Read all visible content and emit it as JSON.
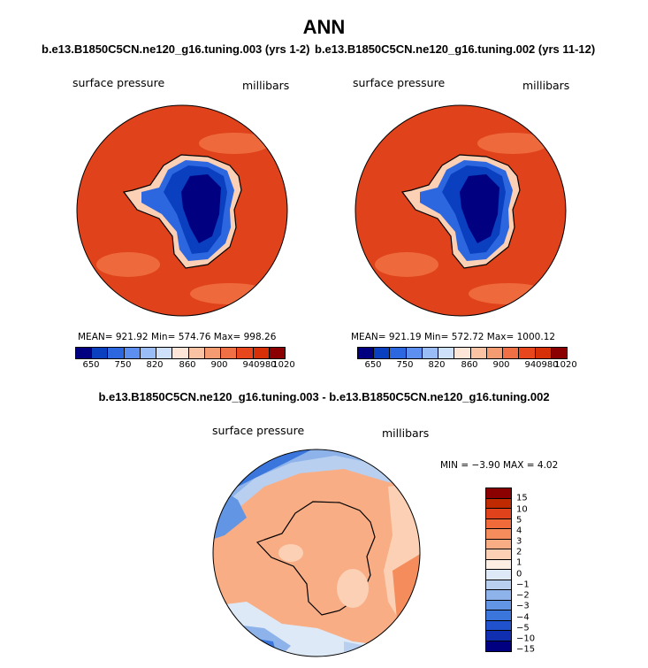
{
  "page": {
    "title": "ANN",
    "left_title": "b.e13.B1850C5CN.ne120_g16.tuning.003 (yrs 1-2)",
    "right_title": "b.e13.B1850C5CN.ne120_g16.tuning.002 (yrs 11-12)",
    "diff_title": "b.e13.B1850C5CN.ne120_g16.tuning.003 - b.e13.B1850C5CN.ne120_g16.tuning.002"
  },
  "chart_data": [
    {
      "type": "heatmap",
      "projection": "south-polar-stereographic",
      "variable": "surface pressure",
      "units": "millibars",
      "title": "b.e13.B1850C5CN.ne120_g16.tuning.003 (yrs 1-2)",
      "stats": {
        "mean": "921.92",
        "min": "574.76",
        "max": "998.26"
      },
      "stats_text": "MEAN= 921.92  Min= 574.76  Max= 998.26",
      "levels": [
        "650",
        "750",
        "820",
        "860",
        "900",
        "940",
        "980",
        "1020"
      ],
      "colors": [
        "#000080",
        "#0a3fbf",
        "#2c67e0",
        "#5c8ff0",
        "#9abdf7",
        "#cfe0fb",
        "#fde6d8",
        "#fac3a3",
        "#f49b72",
        "#ee7044",
        "#e8471d",
        "#d73008",
        "#8b0000"
      ]
    },
    {
      "type": "heatmap",
      "projection": "south-polar-stereographic",
      "variable": "surface pressure",
      "units": "millibars",
      "title": "b.e13.B1850C5CN.ne120_g16.tuning.002 (yrs 11-12)",
      "stats": {
        "mean": "921.19",
        "min": "572.72",
        "max": "1000.12"
      },
      "stats_text": "MEAN= 921.19  Min= 572.72  Max= 1000.12",
      "levels": [
        "650",
        "750",
        "820",
        "860",
        "900",
        "940",
        "980",
        "1020"
      ],
      "colors": [
        "#000080",
        "#0a3fbf",
        "#2c67e0",
        "#5c8ff0",
        "#9abdf7",
        "#cfe0fb",
        "#fde6d8",
        "#fac3a3",
        "#f49b72",
        "#ee7044",
        "#e8471d",
        "#d73008",
        "#8b0000"
      ]
    },
    {
      "type": "heatmap",
      "projection": "south-polar-stereographic",
      "variable": "surface pressure",
      "units": "millibars",
      "title": "b.e13.B1850C5CN.ne120_g16.tuning.003 - b.e13.B1850C5CN.ne120_g16.tuning.002",
      "stats": {
        "min": "-3.90",
        "max": "4.02"
      },
      "stats_text": "MIN =  −3.90 MAX =   4.02",
      "levels": [
        "15",
        "10",
        "5",
        "4",
        "3",
        "2",
        "1",
        "0",
        "−1",
        "−2",
        "−3",
        "−4",
        "−5",
        "−10",
        "−15"
      ],
      "colors": [
        "#8b0000",
        "#c02a00",
        "#e0431c",
        "#f06a3a",
        "#f58c5c",
        "#f8ad85",
        "#fbd0b4",
        "#fdeee3",
        "#dde9f6",
        "#b8cff0",
        "#8eb3ea",
        "#6295e3",
        "#3b76dc",
        "#1f52cc",
        "#0f2fb0",
        "#000080"
      ]
    }
  ]
}
